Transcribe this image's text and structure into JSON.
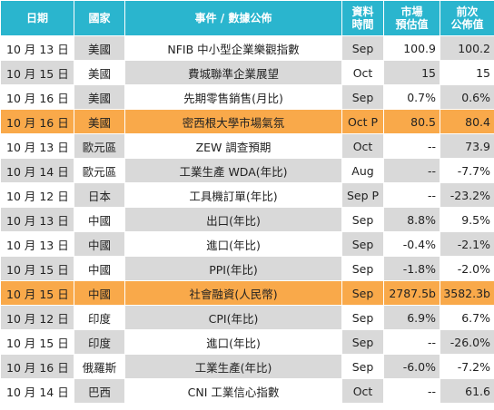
{
  "headers": {
    "date": "日期",
    "country": "國家",
    "event": "事件 / 數據公佈",
    "period_l1": "資料",
    "period_l2": "時間",
    "forecast_l1": "市場",
    "forecast_l2": "預估值",
    "previous_l1": "前次",
    "previous_l2": "公佈值"
  },
  "colors": {
    "header_bg": "#2ab5ce",
    "shade": "#d9d9d9",
    "highlight": "#f9a94a"
  },
  "rows": [
    {
      "date": "10 月 13 日",
      "country": "美國",
      "event": "NFIB 中小型企業樂觀指數",
      "period": "Sep",
      "forecast": "100.9",
      "previous": "100.2",
      "highlight": false
    },
    {
      "date": "10 月 15 日",
      "country": "美國",
      "event": "費城聯準企業展望",
      "period": "Oct",
      "forecast": "15",
      "previous": "15",
      "highlight": false
    },
    {
      "date": "10 月 16 日",
      "country": "美國",
      "event": "先期零售銷售(月比)",
      "period": "Sep",
      "forecast": "0.7%",
      "previous": "0.6%",
      "highlight": false
    },
    {
      "date": "10 月 16 日",
      "country": "美國",
      "event": "密西根大學市場氣氛",
      "period": "Oct P",
      "forecast": "80.5",
      "previous": "80.4",
      "highlight": true
    },
    {
      "date": "10 月 13 日",
      "country": "歐元區",
      "event": "ZEW 調查預期",
      "period": "Oct",
      "forecast": "--",
      "previous": "73.9",
      "highlight": false
    },
    {
      "date": "10 月 14 日",
      "country": "歐元區",
      "event": "工業生產 WDA(年比)",
      "period": "Aug",
      "forecast": "--",
      "previous": "-7.7%",
      "highlight": false
    },
    {
      "date": "10 月 12 日",
      "country": "日本",
      "event": "工具機訂單(年比)",
      "period": "Sep P",
      "forecast": "--",
      "previous": "-23.2%",
      "highlight": false
    },
    {
      "date": "10 月 13 日",
      "country": "中國",
      "event": "出口(年比)",
      "period": "Sep",
      "forecast": "8.8%",
      "previous": "9.5%",
      "highlight": false
    },
    {
      "date": "10 月 13 日",
      "country": "中國",
      "event": "進口(年比)",
      "period": "Sep",
      "forecast": "-0.4%",
      "previous": "-2.1%",
      "highlight": false
    },
    {
      "date": "10 月 15 日",
      "country": "中國",
      "event": "PPI(年比)",
      "period": "Sep",
      "forecast": "-1.8%",
      "previous": "-2.0%",
      "highlight": false
    },
    {
      "date": "10 月 15 日",
      "country": "中國",
      "event": "社會融資(人民幣)",
      "period": "Sep",
      "forecast": "2787.5b",
      "previous": "3582.3b",
      "highlight": true
    },
    {
      "date": "10 月 12 日",
      "country": "印度",
      "event": "CPI(年比)",
      "period": "Sep",
      "forecast": "6.9%",
      "previous": "6.7%",
      "highlight": false
    },
    {
      "date": "10 月 15 日",
      "country": "印度",
      "event": "進口(年比)",
      "period": "Sep",
      "forecast": "--",
      "previous": "-26.0%",
      "highlight": false
    },
    {
      "date": "10 月 16 日",
      "country": "俄羅斯",
      "event": "工業生產(年比)",
      "period": "Sep",
      "forecast": "-6.0%",
      "previous": "-7.2%",
      "highlight": false
    },
    {
      "date": "10 月 14 日",
      "country": "巴西",
      "event": "CNI 工業信心指數",
      "period": "Oct",
      "forecast": "--",
      "previous": "61.6",
      "highlight": false
    }
  ]
}
